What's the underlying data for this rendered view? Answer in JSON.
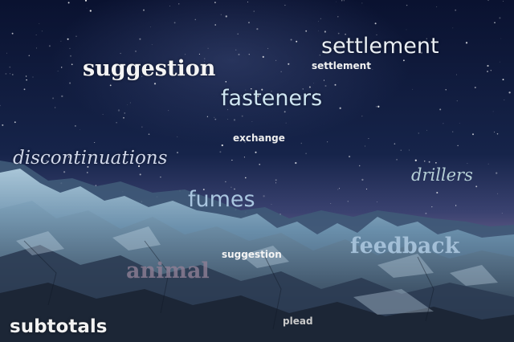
{
  "words": {
    "settlement_large": "settlement",
    "settlement_small": "settlement",
    "suggestion_top": "suggestion",
    "fasteners": "fasteners",
    "exchange": "exchange",
    "discontinuations": "discontinuations",
    "drillers": "drillers",
    "fumes": "fumes",
    "feedback": "feedback",
    "suggestion_small": "suggestion",
    "animal": "animal",
    "subtotals": "subtotals",
    "plead": "plead"
  },
  "colors": {
    "sky_top": "#0a1230",
    "sky_mid": "#1c2c54",
    "horizon": "#5a5a8a",
    "ice_light": "#b9d2e0",
    "ice_mid": "#6e93ad",
    "ice_dark": "#2a3e55",
    "rock": "#1e2838"
  }
}
